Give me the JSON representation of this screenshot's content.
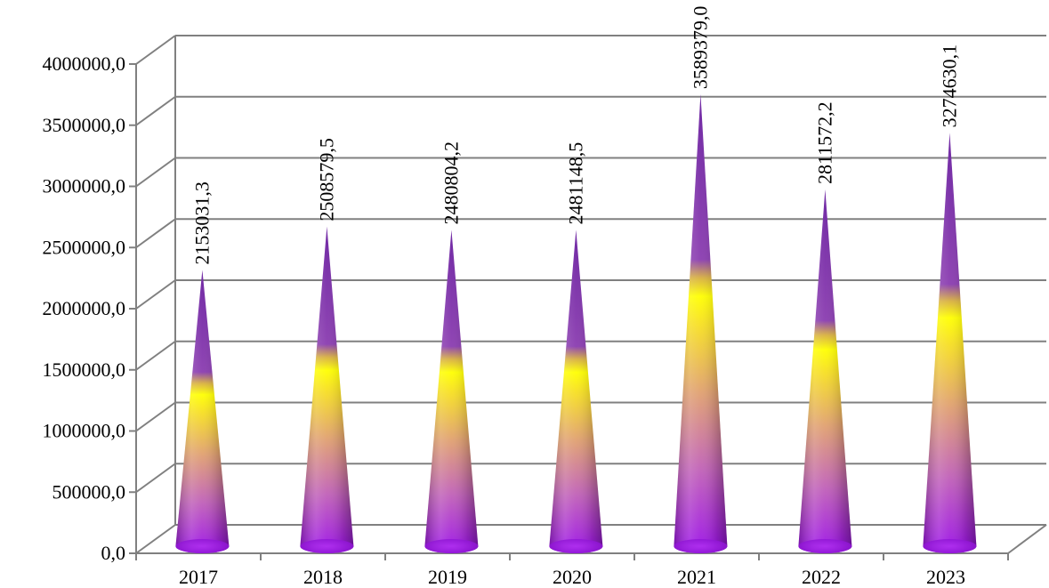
{
  "chart_data": {
    "type": "bar",
    "bar_shape": "cone",
    "style": "3d",
    "categories": [
      "2017",
      "2018",
      "2019",
      "2020",
      "2021",
      "2022",
      "2023"
    ],
    "values": [
      2153031.3,
      2508579.5,
      2480804.2,
      2481148.5,
      3589379.0,
      2811572.2,
      3274630.1
    ],
    "value_labels": [
      "2153031,3",
      "2508579,5",
      "2480804,2",
      "2481148,5",
      "3589379,0",
      "2811572,2",
      "3274630,1"
    ],
    "y_ticks": [
      0,
      500000,
      1000000,
      1500000,
      2000000,
      2500000,
      3000000,
      3500000,
      4000000
    ],
    "y_tick_labels": [
      "0,0",
      "500000,0",
      "1000000,0",
      "1500000,0",
      "2000000,0",
      "2500000,0",
      "3000000,0",
      "3500000,0",
      "4000000,0"
    ],
    "ylim": [
      0,
      4000000
    ],
    "title": "",
    "xlabel": "",
    "ylabel": "",
    "grid": true,
    "legend": "none",
    "colors": {
      "cone_bottom": "#9B1FE0",
      "cone_mid": "#FFFF00",
      "cone_top": "#7B2FA8",
      "grid": "#808080",
      "text": "#000000"
    }
  }
}
